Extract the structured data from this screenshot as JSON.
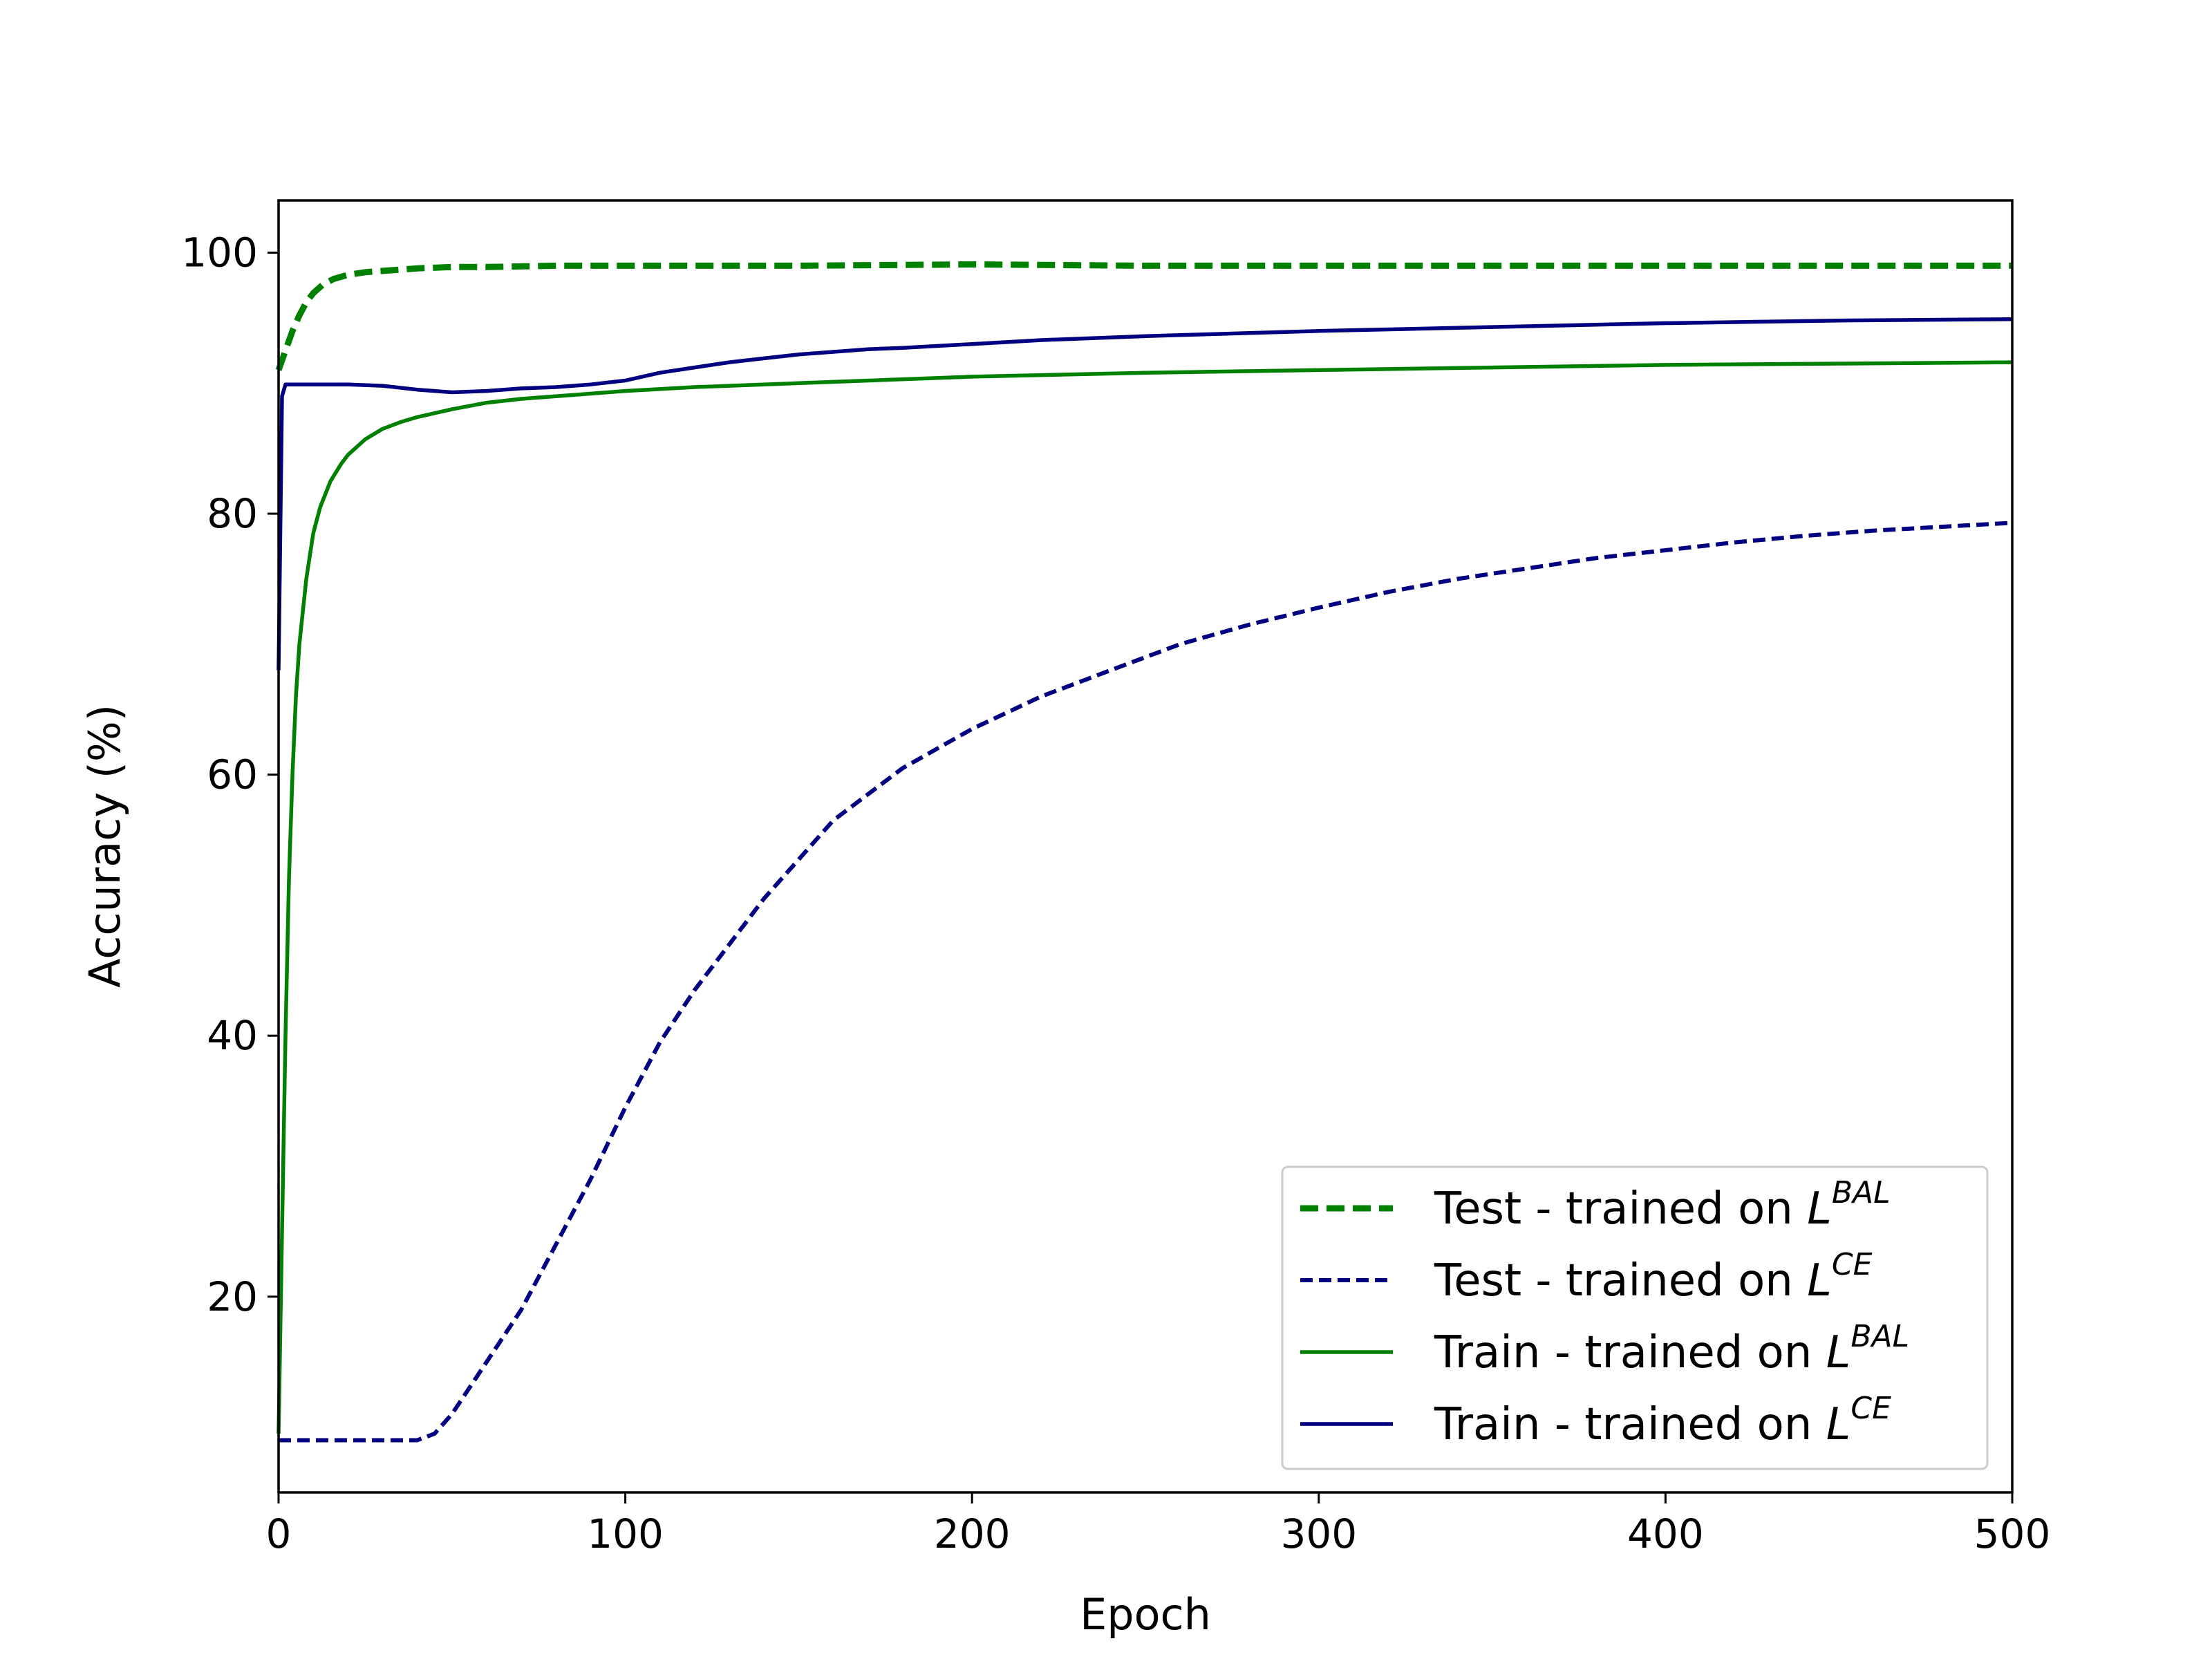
{
  "chart_data": {
    "type": "line",
    "title": "",
    "xlabel": "Epoch",
    "ylabel": "Accuracy (%)",
    "xlim": [
      0,
      500
    ],
    "ylim": [
      5,
      104
    ],
    "xticks": [
      0,
      100,
      200,
      300,
      400,
      500
    ],
    "yticks": [
      20,
      40,
      60,
      80,
      100
    ],
    "grid": false,
    "legend_position": "lower-right",
    "series": [
      {
        "name": "Test - trained on L^BAL",
        "legend_main": "Test - trained on ",
        "legend_symbol": "L",
        "legend_superscript": "BAL",
        "color": "#008000",
        "style": "dashed-thick",
        "x": [
          0,
          2,
          4,
          6,
          8,
          10,
          13,
          16,
          20,
          25,
          30,
          40,
          50,
          60,
          80,
          100,
          150,
          200,
          250,
          300,
          350,
          400,
          450,
          500
        ],
        "y": [
          91.0,
          92.5,
          94.0,
          95.2,
          96.2,
          96.9,
          97.6,
          98.0,
          98.3,
          98.5,
          98.6,
          98.8,
          98.9,
          98.9,
          99.0,
          99.0,
          99.0,
          99.1,
          99.0,
          99.0,
          99.0,
          99.0,
          99.0,
          99.0
        ]
      },
      {
        "name": "Test - trained on L^CE",
        "legend_main": "Test - trained on ",
        "legend_symbol": "L",
        "legend_superscript": "CE",
        "color": "#000080",
        "style": "dashed",
        "x": [
          0,
          10,
          20,
          30,
          40,
          45,
          50,
          55,
          60,
          70,
          80,
          90,
          100,
          110,
          120,
          130,
          140,
          150,
          160,
          170,
          180,
          190,
          200,
          220,
          240,
          260,
          280,
          300,
          320,
          340,
          360,
          380,
          400,
          420,
          440,
          460,
          480,
          500
        ],
        "y": [
          9.0,
          9.0,
          9.0,
          9.0,
          9.0,
          9.5,
          11.0,
          13.0,
          15.0,
          19.0,
          24.0,
          29.0,
          34.5,
          39.5,
          43.5,
          47.0,
          50.5,
          53.5,
          56.5,
          58.5,
          60.5,
          62.0,
          63.5,
          66.0,
          68.0,
          70.0,
          71.5,
          72.8,
          74.0,
          75.0,
          75.8,
          76.6,
          77.2,
          77.8,
          78.3,
          78.7,
          79.0,
          79.3
        ]
      },
      {
        "name": "Train - trained on L^BAL",
        "legend_main": "Train - trained on ",
        "legend_symbol": "L",
        "legend_superscript": "BAL",
        "color": "#008000",
        "style": "solid",
        "x": [
          0,
          1,
          2,
          3,
          4,
          5,
          6,
          8,
          10,
          12,
          15,
          18,
          20,
          25,
          30,
          35,
          40,
          50,
          60,
          70,
          80,
          100,
          120,
          150,
          200,
          250,
          300,
          350,
          400,
          450,
          500
        ],
        "y": [
          9.5,
          25.0,
          40.0,
          52.0,
          60.0,
          66.0,
          70.0,
          75.0,
          78.5,
          80.5,
          82.5,
          83.8,
          84.5,
          85.7,
          86.5,
          87.0,
          87.4,
          88.0,
          88.5,
          88.8,
          89.0,
          89.4,
          89.7,
          90.0,
          90.5,
          90.8,
          91.0,
          91.2,
          91.4,
          91.5,
          91.6
        ]
      },
      {
        "name": "Train - trained on L^CE",
        "legend_main": "Train - trained on ",
        "legend_symbol": "L",
        "legend_superscript": "CE",
        "color": "#000080",
        "style": "solid",
        "x": [
          0,
          1,
          2,
          5,
          10,
          20,
          30,
          40,
          50,
          60,
          70,
          80,
          90,
          100,
          110,
          120,
          130,
          140,
          150,
          160,
          170,
          180,
          200,
          220,
          250,
          300,
          350,
          400,
          450,
          500
        ],
        "y": [
          68.0,
          89.0,
          89.9,
          89.9,
          89.9,
          89.9,
          89.8,
          89.5,
          89.3,
          89.4,
          89.6,
          89.7,
          89.9,
          90.2,
          90.8,
          91.2,
          91.6,
          91.9,
          92.2,
          92.4,
          92.6,
          92.7,
          93.0,
          93.3,
          93.6,
          94.0,
          94.3,
          94.6,
          94.8,
          94.9
        ]
      }
    ]
  }
}
